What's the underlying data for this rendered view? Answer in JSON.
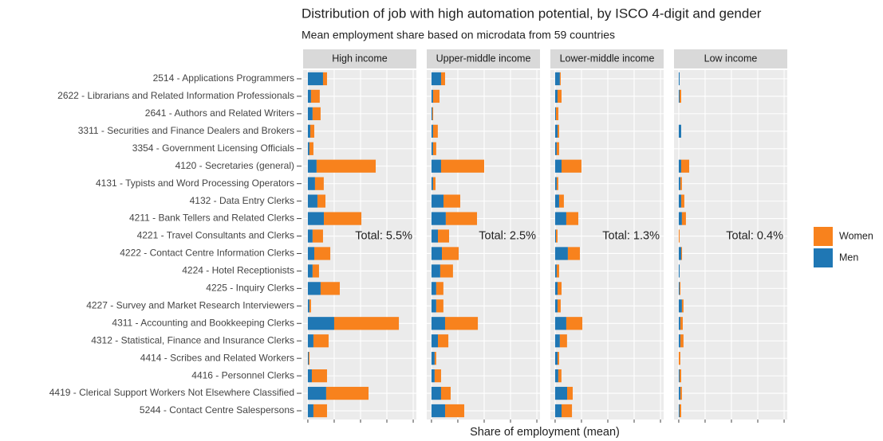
{
  "chart_data": {
    "type": "bar",
    "orientation": "horizontal",
    "stacked": true,
    "title": "Distribution of job with high automation potential, by ISCO 4-digit and gender",
    "subtitle": "Mean employment share based on microdata from 59 countries",
    "x_label": "Share of employment (mean)",
    "grid": true,
    "legend": "right",
    "xlim": [
      -0.045,
      1.03
    ],
    "xticks": [
      0,
      0.25,
      0.5,
      0.75,
      1
    ],
    "categories": [
      "2514 - Applications Programmers",
      "2622 - Librarians and Related Information Professionals",
      "2641 - Authors and Related Writers",
      "3311 - Securities and Finance Dealers and Brokers",
      "3354 - Government Licensing Officials",
      "4120 - Secretaries (general)",
      "4131 - Typists and Word Processing Operators",
      "4132 - Data Entry Clerks",
      "4211 - Bank Tellers and Related Clerks",
      "4221 - Travel Consultants and Clerks",
      "4222 - Contact Centre Information Clerks",
      "4224 - Hotel Receptionists",
      "4225 - Inquiry Clerks",
      "4227 - Survey and Market Research Interviewers",
      "4311 - Accounting and Bookkeeping Clerks",
      "4312 - Statistical, Finance and Insurance Clerks",
      "4414 - Scribes and Related Workers",
      "4416 - Personnel Clerks",
      "4419 - Clerical Support Workers Not Elsewhere Classified",
      "5244 - Contact Centre Salespersons"
    ],
    "facets": [
      {
        "title": "High income",
        "annotation": "Total: 5.5%",
        "series": [
          {
            "name": "Women",
            "color": "#f8821d",
            "values": [
              0.038,
              0.083,
              0.076,
              0.038,
              0.038,
              0.561,
              0.083,
              0.076,
              0.356,
              0.099,
              0.152,
              0.061,
              0.182,
              0.015,
              0.614,
              0.144,
              0.008,
              0.144,
              0.402,
              0.129
            ]
          },
          {
            "name": "Men",
            "color": "#1f77b4",
            "values": [
              0.144,
              0.03,
              0.045,
              0.023,
              0.015,
              0.083,
              0.068,
              0.091,
              0.152,
              0.045,
              0.061,
              0.045,
              0.121,
              0.015,
              0.25,
              0.053,
              0.008,
              0.038,
              0.174,
              0.053
            ]
          }
        ]
      },
      {
        "title": "Upper-middle income",
        "annotation": "Total: 2.5%",
        "series": [
          {
            "name": "Women",
            "color": "#f8821d",
            "values": [
              0.038,
              0.061,
              0.008,
              0.045,
              0.03,
              0.409,
              0.023,
              0.159,
              0.296,
              0.106,
              0.159,
              0.121,
              0.068,
              0.068,
              0.311,
              0.099,
              0.015,
              0.061,
              0.091,
              0.182
            ]
          },
          {
            "name": "Men",
            "color": "#1f77b4",
            "values": [
              0.091,
              0.015,
              0.008,
              0.015,
              0.015,
              0.091,
              0.015,
              0.114,
              0.136,
              0.061,
              0.099,
              0.083,
              0.045,
              0.045,
              0.129,
              0.061,
              0.03,
              0.03,
              0.091,
              0.129
            ]
          }
        ]
      },
      {
        "title": "Lower-middle income",
        "annotation": "Total: 1.3%",
        "series": [
          {
            "name": "Women",
            "color": "#f8821d",
            "values": [
              0.008,
              0.038,
              0.023,
              0.015,
              0.023,
              0.189,
              0.015,
              0.045,
              0.114,
              0.015,
              0.114,
              0.023,
              0.038,
              0.03,
              0.152,
              0.068,
              0.015,
              0.03,
              0.053,
              0.099
            ]
          },
          {
            "name": "Men",
            "color": "#1f77b4",
            "values": [
              0.045,
              0.023,
              0.008,
              0.023,
              0.015,
              0.061,
              0.015,
              0.038,
              0.106,
              0.008,
              0.121,
              0.015,
              0.023,
              0.023,
              0.106,
              0.045,
              0.023,
              0.03,
              0.114,
              0.061
            ]
          }
        ]
      },
      {
        "title": "Low income",
        "annotation": "Total: 0.4%",
        "series": [
          {
            "name": "Women",
            "color": "#f8821d",
            "values": [
              0,
              0.015,
              0,
              0,
              0,
              0.076,
              0.015,
              0.03,
              0.038,
              0.008,
              0.008,
              0,
              0.008,
              0.015,
              0.023,
              0.03,
              0.015,
              0.015,
              0.015,
              0.015
            ]
          },
          {
            "name": "Men",
            "color": "#1f77b4",
            "values": [
              0.008,
              0.008,
              0,
              0.023,
              0,
              0.023,
              0.015,
              0.023,
              0.03,
              0,
              0.023,
              0.008,
              0.008,
              0.03,
              0.015,
              0.015,
              0,
              0.008,
              0.015,
              0.008
            ]
          }
        ]
      }
    ]
  }
}
